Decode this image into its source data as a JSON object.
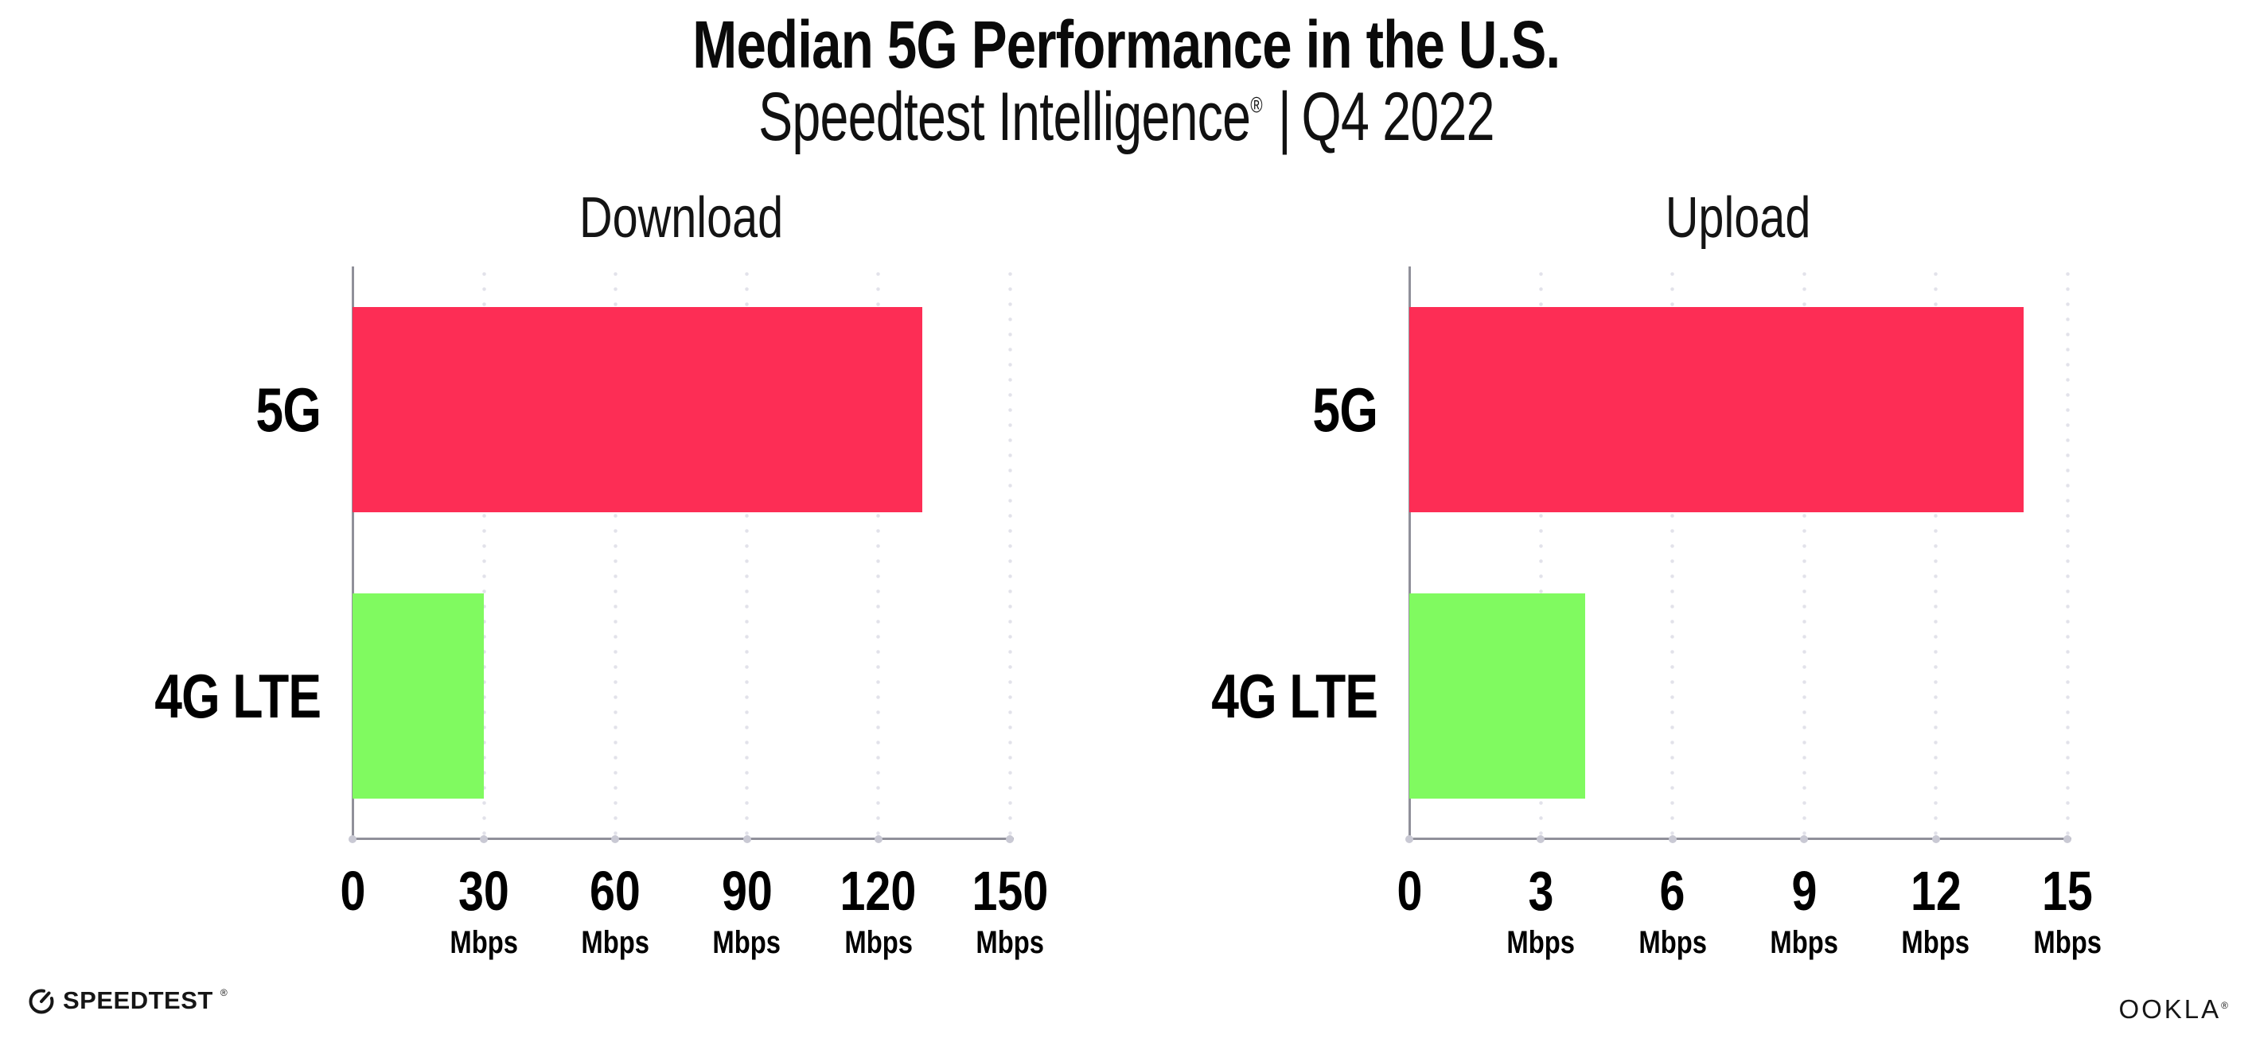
{
  "header": {
    "title": "Median 5G Performance in the U.S.",
    "subtitle_brand": "Speedtest Intelligence",
    "subtitle_reg": "®",
    "subtitle_separator": "|",
    "subtitle_period": "Q4 2022"
  },
  "colors": {
    "bar_5g": "#fd2d55",
    "bar_4g_lte": "#80fa60",
    "axis_line": "#90909a",
    "tick_dot": "#c9c9d4",
    "gridline_dot": "#e2e2ea",
    "text": "#0a0a0a"
  },
  "chart_data": [
    {
      "type": "bar",
      "orientation": "horizontal",
      "title": "Download",
      "categories": [
        "5G",
        "4G LTE"
      ],
      "values": [
        130,
        30
      ],
      "unit": "Mbps",
      "xlim": [
        0,
        150
      ],
      "xticks": [
        0,
        30,
        60,
        90,
        120,
        150
      ],
      "grid": "vertical-dotted",
      "bar_colors": [
        "#fd2d55",
        "#80fa60"
      ],
      "legend": "none"
    },
    {
      "type": "bar",
      "orientation": "horizontal",
      "title": "Upload",
      "categories": [
        "5G",
        "4G LTE"
      ],
      "values": [
        14,
        4
      ],
      "unit": "Mbps",
      "xlim": [
        0,
        15
      ],
      "xticks": [
        0,
        3,
        6,
        9,
        12,
        15
      ],
      "grid": "vertical-dotted",
      "bar_colors": [
        "#fd2d55",
        "#80fa60"
      ],
      "legend": "none"
    }
  ],
  "footer": {
    "speedtest_label": "SPEEDTEST",
    "speedtest_reg": "®",
    "speedtest_icon": "gauge-icon",
    "ookla_label": "OOKLA",
    "ookla_reg": "®"
  }
}
